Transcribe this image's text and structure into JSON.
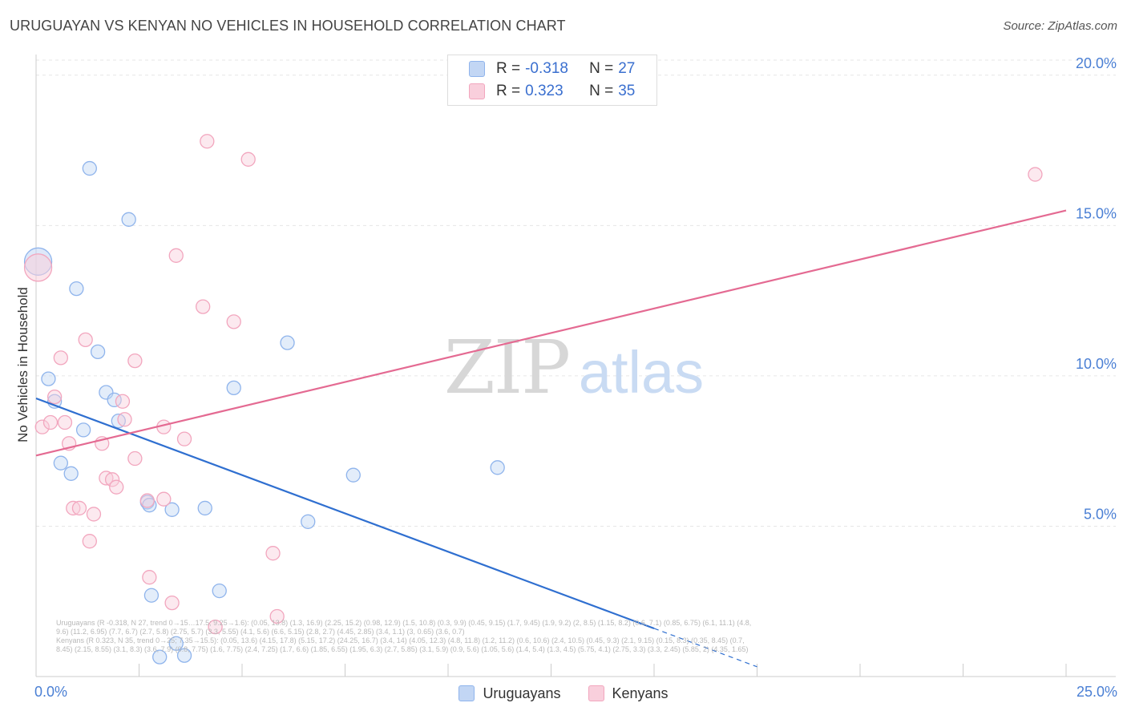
{
  "title": "URUGUAYAN VS KENYAN NO VEHICLES IN HOUSEHOLD CORRELATION CHART",
  "source": "Source: ZipAtlas.com",
  "watermark": {
    "zip": "ZIP",
    "atlas": "atlas"
  },
  "legend": {
    "r_label": "R =",
    "n_label": "N =",
    "rows": [
      {
        "r": "-0.318",
        "n": "27"
      },
      {
        "r": "0.323",
        "n": "35"
      }
    ]
  },
  "chart_data": {
    "type": "scatter",
    "title": "URUGUAYAN VS KENYAN NO VEHICLES IN HOUSEHOLD CORRELATION CHART",
    "xlabel": "",
    "ylabel": "No Vehicles in Household",
    "xlim": [
      0,
      25
    ],
    "ylim": [
      0,
      20.5
    ],
    "x_tick_labels": [
      "0.0%",
      "25.0%"
    ],
    "y_ticks": [
      {
        "value": 5,
        "label": "5.0%"
      },
      {
        "value": 10,
        "label": "10.0%"
      },
      {
        "value": 15,
        "label": "15.0%"
      },
      {
        "value": 20,
        "label": "20.0%"
      }
    ],
    "legend_position": "top-center",
    "series": [
      {
        "name": "Uruguayans",
        "color": "#8fb4ec",
        "fill": "#c2d6f4",
        "line_color": "#2f6fd0",
        "r": -0.318,
        "n": 27,
        "trend": {
          "x0": 0,
          "y0": 9.25,
          "x1": 15,
          "y1": 1.6,
          "dash_x1": 17.5
        },
        "points": [
          {
            "x": 0.05,
            "y": 13.8,
            "big": true
          },
          {
            "x": 1.3,
            "y": 16.9
          },
          {
            "x": 2.25,
            "y": 15.2
          },
          {
            "x": 0.98,
            "y": 12.9
          },
          {
            "x": 1.5,
            "y": 10.8
          },
          {
            "x": 0.3,
            "y": 9.9
          },
          {
            "x": 0.45,
            "y": 9.15
          },
          {
            "x": 1.7,
            "y": 9.45
          },
          {
            "x": 1.9,
            "y": 9.2
          },
          {
            "x": 2.0,
            "y": 8.5
          },
          {
            "x": 1.15,
            "y": 8.2
          },
          {
            "x": 0.6,
            "y": 7.1
          },
          {
            "x": 0.85,
            "y": 6.75
          },
          {
            "x": 6.1,
            "y": 11.1
          },
          {
            "x": 4.8,
            "y": 9.6
          },
          {
            "x": 11.2,
            "y": 6.95
          },
          {
            "x": 7.7,
            "y": 6.7
          },
          {
            "x": 2.7,
            "y": 5.8
          },
          {
            "x": 2.75,
            "y": 5.7
          },
          {
            "x": 3.3,
            "y": 5.55
          },
          {
            "x": 4.1,
            "y": 5.6
          },
          {
            "x": 6.6,
            "y": 5.15
          },
          {
            "x": 2.8,
            "y": 2.7
          },
          {
            "x": 4.45,
            "y": 2.85
          },
          {
            "x": 3.4,
            "y": 1.1
          },
          {
            "x": 3.0,
            "y": 0.65
          },
          {
            "x": 3.6,
            "y": 0.7
          }
        ]
      },
      {
        "name": "Kenyans",
        "color": "#f2a6be",
        "fill": "#f9cfdc",
        "line_color": "#e46a92",
        "r": 0.323,
        "n": 35,
        "trend": {
          "x0": 0,
          "y0": 7.35,
          "x1": 25,
          "y1": 15.5
        },
        "points": [
          {
            "x": 0.05,
            "y": 13.6,
            "big": true
          },
          {
            "x": 4.15,
            "y": 17.8
          },
          {
            "x": 5.15,
            "y": 17.2
          },
          {
            "x": 24.25,
            "y": 16.7
          },
          {
            "x": 3.4,
            "y": 14.0
          },
          {
            "x": 4.05,
            "y": 12.3
          },
          {
            "x": 4.8,
            "y": 11.8
          },
          {
            "x": 1.2,
            "y": 11.2
          },
          {
            "x": 0.6,
            "y": 10.6
          },
          {
            "x": 2.4,
            "y": 10.5
          },
          {
            "x": 0.45,
            "y": 9.3
          },
          {
            "x": 2.1,
            "y": 9.15
          },
          {
            "x": 0.15,
            "y": 8.3
          },
          {
            "x": 0.35,
            "y": 8.45
          },
          {
            "x": 0.7,
            "y": 8.45
          },
          {
            "x": 2.15,
            "y": 8.55
          },
          {
            "x": 3.1,
            "y": 8.3
          },
          {
            "x": 3.6,
            "y": 7.9
          },
          {
            "x": 0.8,
            "y": 7.75
          },
          {
            "x": 1.6,
            "y": 7.75
          },
          {
            "x": 2.4,
            "y": 7.25
          },
          {
            "x": 1.7,
            "y": 6.6
          },
          {
            "x": 1.85,
            "y": 6.55
          },
          {
            "x": 1.95,
            "y": 6.3
          },
          {
            "x": 2.7,
            "y": 5.85
          },
          {
            "x": 3.1,
            "y": 5.9
          },
          {
            "x": 0.9,
            "y": 5.6
          },
          {
            "x": 1.05,
            "y": 5.6
          },
          {
            "x": 1.4,
            "y": 5.4
          },
          {
            "x": 1.3,
            "y": 4.5
          },
          {
            "x": 5.75,
            "y": 4.1
          },
          {
            "x": 2.75,
            "y": 3.3
          },
          {
            "x": 3.3,
            "y": 2.45
          },
          {
            "x": 5.85,
            "y": 2.0
          },
          {
            "x": 4.35,
            "y": 1.65
          }
        ]
      }
    ]
  }
}
